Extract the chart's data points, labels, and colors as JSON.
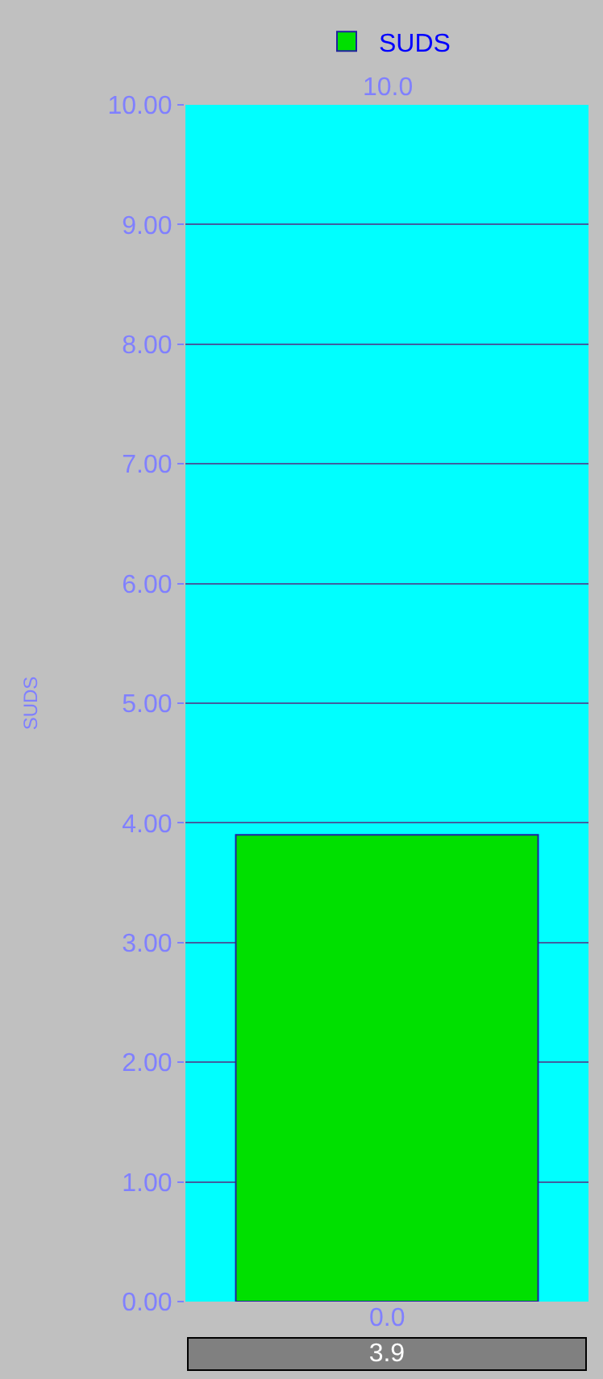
{
  "chart_data": {
    "type": "bar",
    "ylabel": "SUDS",
    "categories": [
      null
    ],
    "series": [
      {
        "name": "SUDS",
        "color": "#00e000",
        "values": [
          3.9
        ]
      }
    ],
    "value_labels": [
      "3.9"
    ],
    "annotations": [
      "10.0",
      "0.0"
    ],
    "ylim": [
      0,
      10
    ],
    "yticks": [
      {
        "value": 0,
        "label": "0.00"
      },
      {
        "value": 1,
        "label": "1.00"
      },
      {
        "value": 2,
        "label": "2.00"
      },
      {
        "value": 3,
        "label": "3.00"
      },
      {
        "value": 4,
        "label": "4.00"
      },
      {
        "value": 5,
        "label": "5.00"
      },
      {
        "value": 6,
        "label": "6.00"
      },
      {
        "value": 7,
        "label": "7.00"
      },
      {
        "value": 8,
        "label": "8.00"
      },
      {
        "value": 9,
        "label": "9.00"
      },
      {
        "value": 10,
        "label": "10.00"
      }
    ],
    "grid": "y",
    "legend": "top",
    "tick_labels": "y"
  }
}
